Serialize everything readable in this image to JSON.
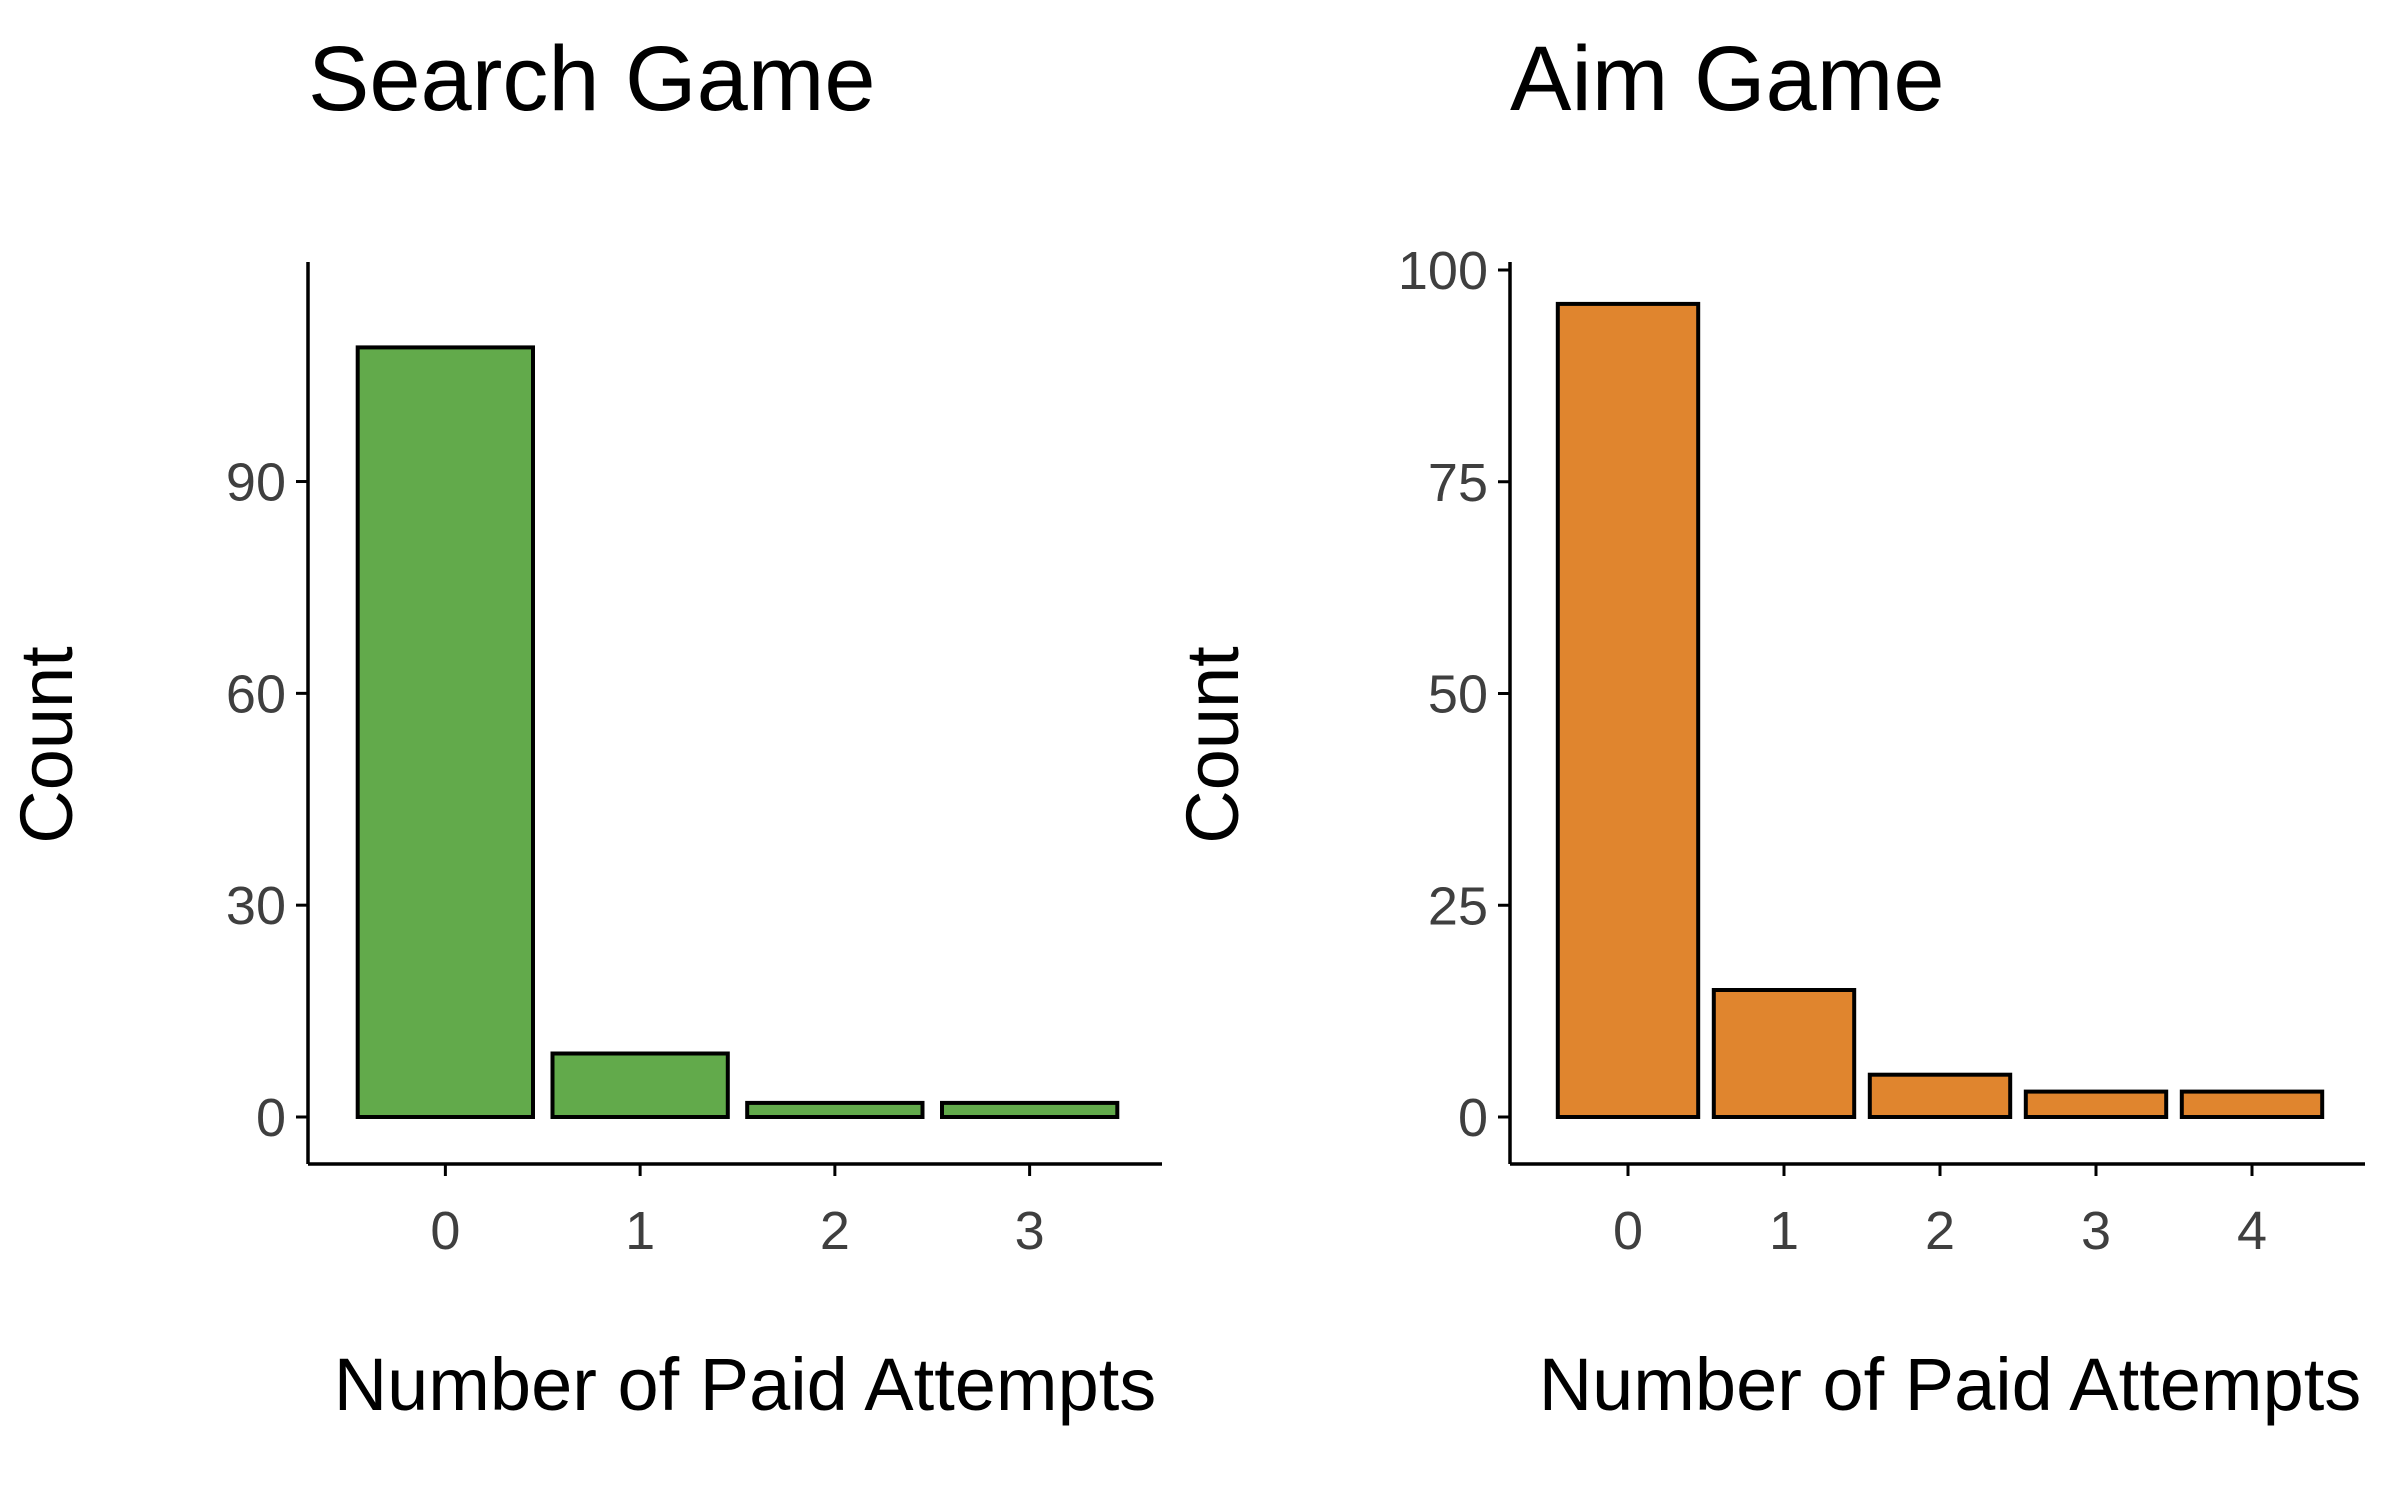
{
  "chart_data": [
    {
      "type": "bar",
      "title": "Search Game",
      "xlabel": "Number of Paid Attempts",
      "ylabel": "Count",
      "categories": [
        "0",
        "1",
        "2",
        "3"
      ],
      "values": [
        109,
        9,
        2,
        2
      ],
      "ylim": [
        0,
        115
      ],
      "yticks": [
        0,
        30,
        60,
        90
      ],
      "grid": false,
      "legend": "none",
      "colors": {
        "bar": "#62aa4b",
        "outline": "#000000"
      }
    },
    {
      "type": "bar",
      "title": "Aim Game",
      "xlabel": "Number of Paid Attempts",
      "ylabel": "Count",
      "categories": [
        "0",
        "1",
        "2",
        "3",
        "4"
      ],
      "values": [
        96,
        15,
        5,
        3,
        3
      ],
      "ylim": [
        0,
        100
      ],
      "yticks": [
        0,
        25,
        50,
        75,
        100
      ],
      "grid": false,
      "legend": "none",
      "colors": {
        "bar": "#e0852e",
        "outline": "#000000"
      }
    }
  ]
}
